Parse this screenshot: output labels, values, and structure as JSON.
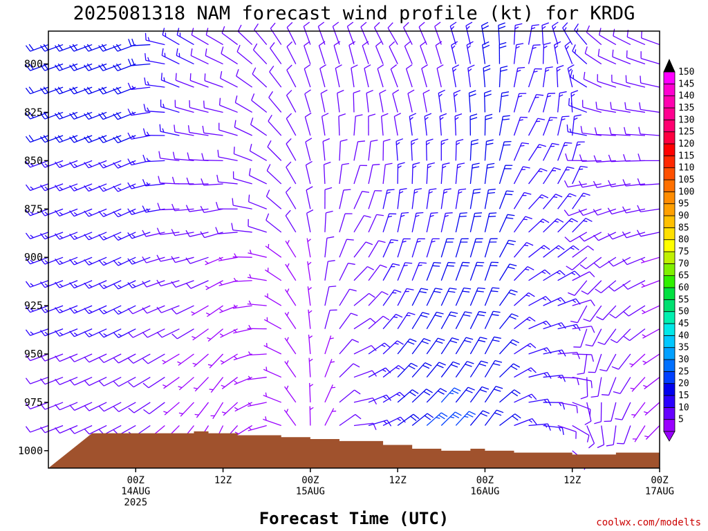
{
  "title": "2025081318 NAM forecast wind profile (kt) for KRDG",
  "xlabel": "Forecast Time (UTC)",
  "credit": "coolwx.com/modelts",
  "colors": {
    "terrain": "#a0522d",
    "barb_default": "#8a2be2"
  },
  "chart_data": {
    "type": "wind-barb time-height profile",
    "title": "2025081318 NAM forecast wind profile (kt) for KRDG",
    "xlabel": "Forecast Time (UTC)",
    "ylabel": "",
    "x_range_hours": [
      -6,
      78
    ],
    "x_step_hours": 2,
    "y_range_hpa": [
      783,
      1009
    ],
    "levels_hpa": [
      790,
      800,
      812,
      825,
      837,
      850,
      862,
      875,
      887,
      900,
      912,
      925,
      937,
      950,
      962,
      975,
      987,
      1000
    ],
    "y_ticks": [
      {
        "value": 800,
        "label": "800"
      },
      {
        "value": 825,
        "label": "825"
      },
      {
        "value": 850,
        "label": "850"
      },
      {
        "value": 875,
        "label": "875"
      },
      {
        "value": 900,
        "label": "900"
      },
      {
        "value": 925,
        "label": "925"
      },
      {
        "value": 950,
        "label": "950"
      },
      {
        "value": 975,
        "label": "975"
      },
      {
        "value": 1000,
        "label": "1000"
      }
    ],
    "x_ticks": [
      {
        "hour": 6,
        "lines": [
          "00Z",
          "14AUG",
          "2025"
        ]
      },
      {
        "hour": 18,
        "lines": [
          "12Z"
        ]
      },
      {
        "hour": 30,
        "lines": [
          "00Z",
          "15AUG"
        ]
      },
      {
        "hour": 42,
        "lines": [
          "12Z"
        ]
      },
      {
        "hour": 54,
        "lines": [
          "00Z",
          "16AUG"
        ]
      },
      {
        "hour": 66,
        "lines": [
          "12Z"
        ]
      },
      {
        "hour": 78,
        "lines": [
          "00Z",
          "17AUG"
        ]
      }
    ],
    "surface_pressure_hpa": [
      {
        "hour": 0,
        "p": 991
      },
      {
        "hour": 12,
        "p": 991
      },
      {
        "hour": 14,
        "p": 990
      },
      {
        "hour": 16,
        "p": 991
      },
      {
        "hour": 20,
        "p": 992
      },
      {
        "hour": 26,
        "p": 993
      },
      {
        "hour": 30,
        "p": 994
      },
      {
        "hour": 34,
        "p": 995
      },
      {
        "hour": 40,
        "p": 997
      },
      {
        "hour": 44,
        "p": 999
      },
      {
        "hour": 48,
        "p": 1000
      },
      {
        "hour": 52,
        "p": 999
      },
      {
        "hour": 54,
        "p": 1000
      },
      {
        "hour": 58,
        "p": 1001
      },
      {
        "hour": 66,
        "p": 1002
      },
      {
        "hour": 72,
        "p": 1001
      },
      {
        "hour": 78,
        "p": 1000
      },
      {
        "hour": 84,
        "p": 1000
      }
    ],
    "wind_regimes": [
      {
        "hour": -6,
        "dir_low": 250,
        "dir_high": 250,
        "spd_low": 10,
        "spd_high": 20
      },
      {
        "hour": 6,
        "dir_low": 240,
        "dir_high": 250,
        "spd_low": 10,
        "spd_high": 20
      },
      {
        "hour": 12,
        "dir_low": 220,
        "dir_high": 300,
        "spd_low": 5,
        "spd_high": 15
      },
      {
        "hour": 18,
        "dir_low": 200,
        "dir_high": 300,
        "spd_low": 5,
        "spd_high": 10
      },
      {
        "hour": 24,
        "dir_low": 250,
        "dir_high": 320,
        "spd_low": 5,
        "spd_high": 10
      },
      {
        "hour": 30,
        "dir_low": 0,
        "dir_high": 340,
        "spd_low": 5,
        "spd_high": 10
      },
      {
        "hour": 36,
        "dir_low": 90,
        "dir_high": 340,
        "spd_low": 10,
        "spd_high": 10
      },
      {
        "hour": 42,
        "dir_low": 60,
        "dir_high": 330,
        "spd_low": 20,
        "spd_high": 10
      },
      {
        "hour": 48,
        "dir_low": 50,
        "dir_high": 340,
        "spd_low": 25,
        "spd_high": 10
      },
      {
        "hour": 54,
        "dir_low": 40,
        "dir_high": 350,
        "spd_low": 20,
        "spd_high": 20
      },
      {
        "hour": 60,
        "dir_low": 90,
        "dir_high": 10,
        "spd_low": 15,
        "spd_high": 15
      },
      {
        "hour": 66,
        "dir_low": 130,
        "dir_high": 330,
        "spd_low": 10,
        "spd_high": 15
      },
      {
        "hour": 72,
        "dir_low": 180,
        "dir_high": 300,
        "spd_low": 10,
        "spd_high": 10
      },
      {
        "hour": 78,
        "dir_low": 220,
        "dir_high": 290,
        "spd_low": 5,
        "spd_high": 10
      },
      {
        "hour": 84,
        "dir_low": 240,
        "dir_high": 290,
        "spd_low": 10,
        "spd_high": 10
      }
    ],
    "colorbar": {
      "units": "kt",
      "levels": [
        5,
        10,
        15,
        20,
        25,
        30,
        35,
        40,
        45,
        50,
        55,
        60,
        65,
        70,
        75,
        80,
        85,
        90,
        95,
        100,
        105,
        110,
        115,
        120,
        125,
        130,
        135,
        140,
        145,
        150
      ],
      "colors": [
        "#9a00ff",
        "#6600ff",
        "#2a00ff",
        "#0000ee",
        "#0040ff",
        "#0070ff",
        "#00a0ff",
        "#00c8ff",
        "#00e8e8",
        "#00f0b0",
        "#00e070",
        "#00e040",
        "#30f000",
        "#80f000",
        "#c0f000",
        "#ffff00",
        "#ffe000",
        "#ffc000",
        "#ffa000",
        "#ff8c00",
        "#ff7000",
        "#ff5000",
        "#ff2800",
        "#ff0000",
        "#ff0040",
        "#ff0070",
        "#ff0090",
        "#ff00b0",
        "#ff00d0",
        "#ff00ff"
      ],
      "under_color": "#9a00ff",
      "over_color": "#000000"
    }
  }
}
